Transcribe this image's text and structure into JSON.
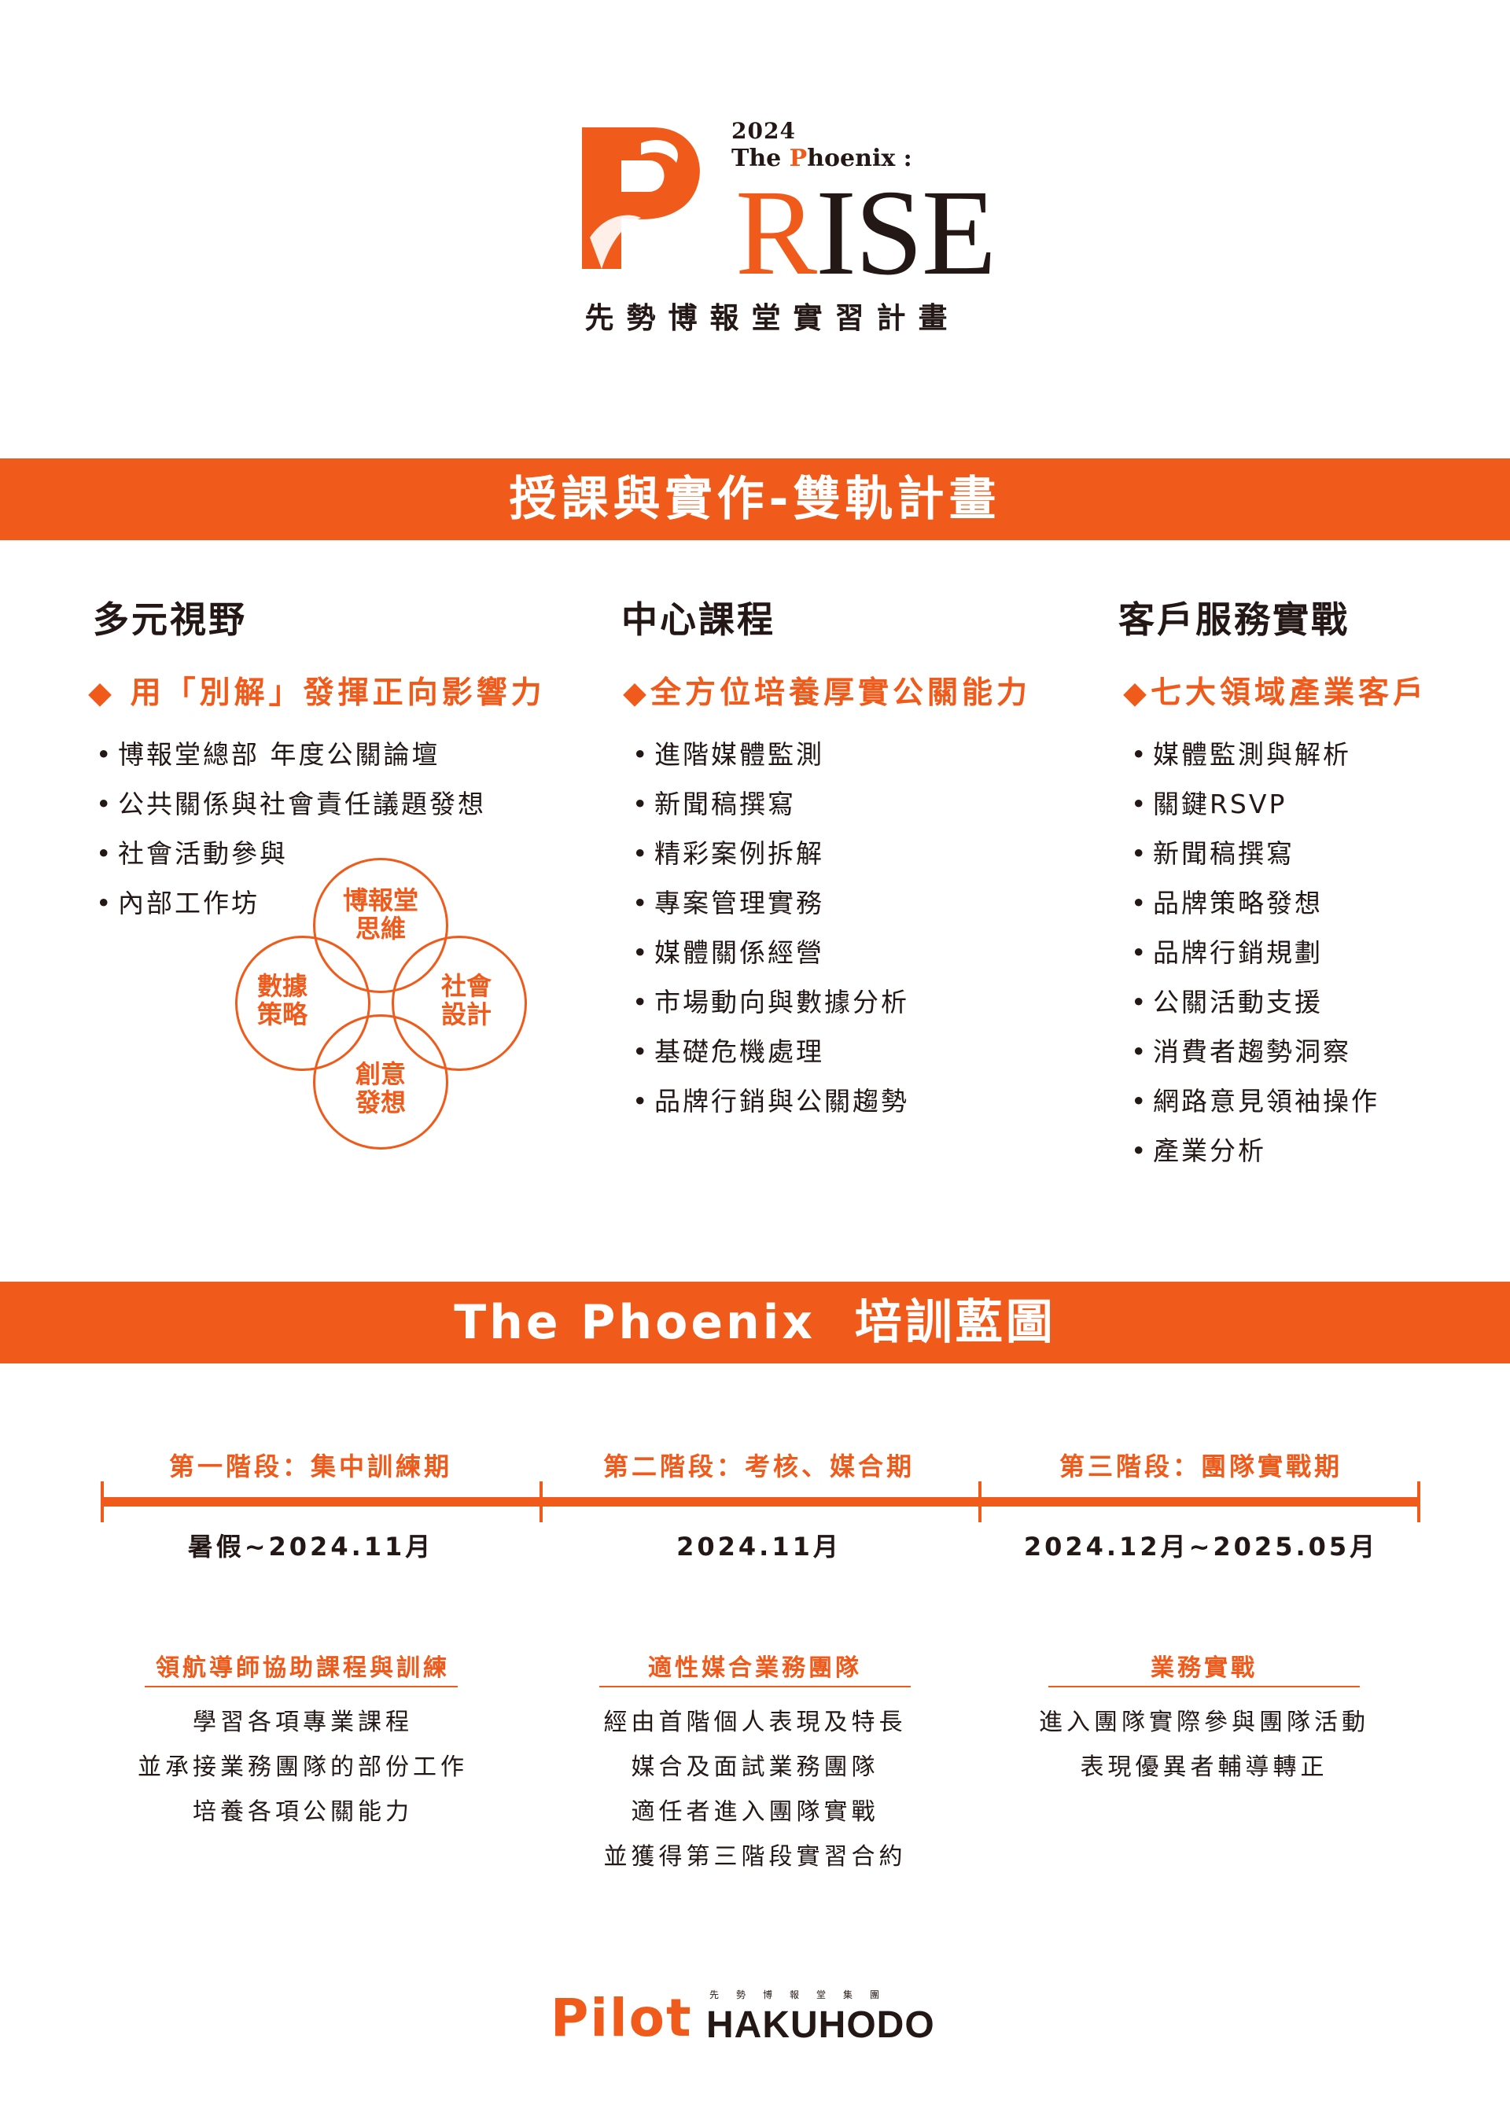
{
  "header": {
    "year": "2024",
    "phoenix_prefix": "The ",
    "phoenix_p": "P",
    "phoenix_suffix": "hoenix :",
    "rise_r": "R",
    "rise_rest": "ISE",
    "subtitle": "先勢博報堂實習計畫"
  },
  "section1": {
    "title": "授課與實作-雙軌計畫",
    "columns": [
      {
        "heading": "多元視野",
        "highlight": "◆ 用「別解」發揮正向影響力",
        "items": [
          "博報堂總部 年度公關論壇",
          "公共關係與社會責任議題發想",
          "社會活動參與",
          "內部工作坊"
        ]
      },
      {
        "heading": "中心課程",
        "highlight": "◆全方位培養厚實公關能力",
        "items": [
          "進階媒體監測",
          "新聞稿撰寫",
          "精彩案例拆解",
          "專案管理實務",
          "媒體關係經營",
          "市場動向與數據分析",
          "基礎危機處理",
          "品牌行銷與公關趨勢"
        ]
      },
      {
        "heading": "客戶服務實戰",
        "highlight": "◆七大領域產業客戶",
        "items": [
          "媒體監測與解析",
          "關鍵RSVP",
          "新聞稿撰寫",
          "品牌策略發想",
          "品牌行銷規劃",
          "公關活動支援",
          "消費者趨勢洞察",
          "網路意見領袖操作",
          "產業分析"
        ]
      }
    ],
    "venn": {
      "top": [
        "博報堂",
        "思維"
      ],
      "left": [
        "數據",
        "策略"
      ],
      "right": [
        "社會",
        "設計"
      ],
      "bottom": [
        "創意",
        "發想"
      ]
    }
  },
  "section2": {
    "title": "The Phoenix  培訓藍圖",
    "phases": [
      {
        "label": "第一階段：集中訓練期",
        "date": "暑假~2024.11月",
        "subheading": "領航導師協助課程與訓練",
        "lines": [
          "學習各項專業課程",
          "並承接業務團隊的部份工作",
          "培養各項公關能力"
        ]
      },
      {
        "label": "第二階段：考核、媒合期",
        "date": "2024.11月",
        "subheading": "適性媒合業務團隊",
        "lines": [
          "經由首階個人表現及特長",
          "媒合及面試業務團隊",
          "適任者進入團隊實戰",
          "並獲得第三階段實習合約"
        ]
      },
      {
        "label": "第三階段：團隊實戰期",
        "date": "2024.12月~2025.05月",
        "subheading": "業務實戰",
        "lines": [
          "進入團隊實際參與團隊活動",
          "表現優異者輔導轉正"
        ]
      }
    ]
  },
  "footer": {
    "pilot": "Pilot",
    "small": "先勢博報堂集團",
    "hakuhodo": "HAKUHODO"
  },
  "colors": {
    "accent": "#f05a1a",
    "text": "#231815"
  }
}
